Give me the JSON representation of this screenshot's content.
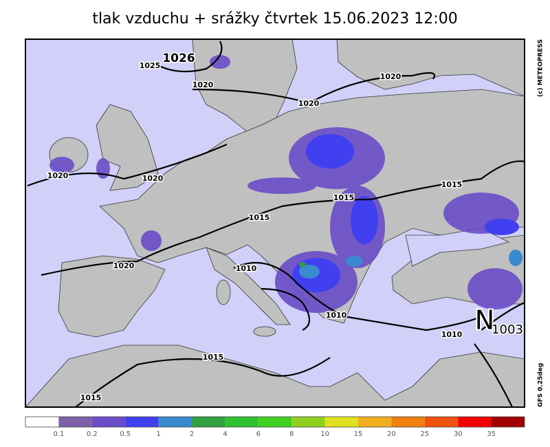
{
  "header": {
    "title": "tlak vzduchu + srážky čtvrtek 15.06.2023 12:00"
  },
  "credits": {
    "copyright": "(c) METEOPRESS",
    "model": "GFS 0.25deg"
  },
  "map": {
    "high_label": "1026",
    "isobar_labels": [
      "1025",
      "1020",
      "1020",
      "1020",
      "1020",
      "1020",
      "1020",
      "1015",
      "1015",
      "1015",
      "1015",
      "1015",
      "1010",
      "1010",
      "1010"
    ],
    "low_symbol": "N",
    "low_label": "1003"
  },
  "legend": {
    "colors": [
      "#ffffff",
      "#7f5fa8",
      "#6a4cc8",
      "#4040f0",
      "#3a8ad0",
      "#30a040",
      "#30c030",
      "#40d020",
      "#90d020",
      "#e0e020",
      "#f0b020",
      "#f08010",
      "#f05010",
      "#f00000",
      "#a00000"
    ],
    "labels": [
      "0.1",
      "0.2",
      "0.5",
      "1",
      "2",
      "4",
      "6",
      "8",
      "10",
      "15",
      "20",
      "25",
      "30",
      "35"
    ]
  }
}
